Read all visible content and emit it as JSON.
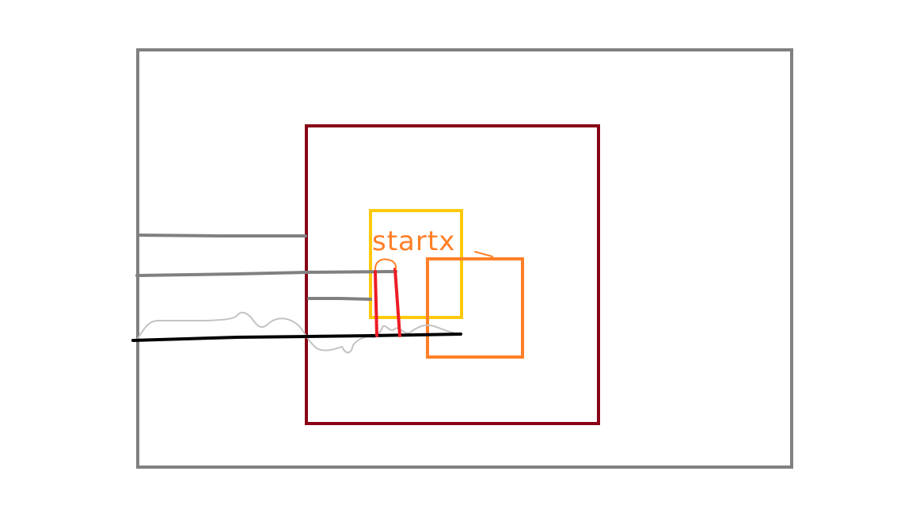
{
  "annotation": {
    "text": "startx"
  },
  "colors": {
    "background": "#ffffff",
    "outer_frame": "#808080",
    "inner_square": "#880015",
    "yellow_box": "#ffc90e",
    "orange_box": "#ff7f27",
    "red_marker": "#ed1c24",
    "connector_lines": "#808080",
    "baseline": "#000000",
    "wavy_line": "#c3c3c3"
  }
}
